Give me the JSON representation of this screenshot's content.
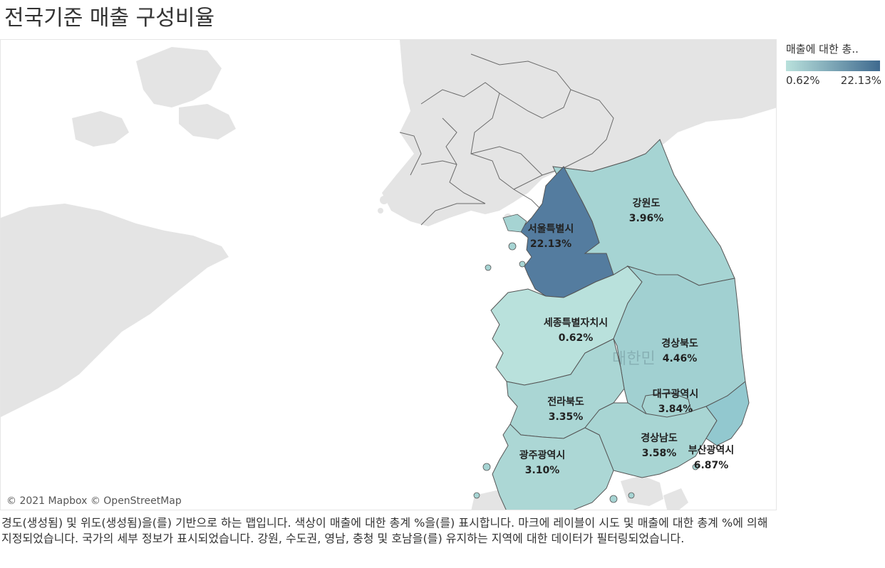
{
  "title": "전국기준 매출 구성비율",
  "map": {
    "country_label": "대한민",
    "attribution": "© 2021 Mapbox © OpenStreetMap",
    "base_colors": {
      "land": "#e4e4e4",
      "water": "#ffffff",
      "border": "#6a6a6a"
    },
    "regions": [
      {
        "name": "서울특별시",
        "value": "22.13%",
        "share": 22.13,
        "color": "#547c9f"
      },
      {
        "name": "강원도",
        "value": "3.96%",
        "share": 3.96,
        "color": "#a6d4d3"
      },
      {
        "name": "세종특별자치시",
        "value": "0.62%",
        "share": 0.62,
        "color": "#b9e1dc"
      },
      {
        "name": "경상북도",
        "value": "4.46%",
        "share": 4.46,
        "color": "#a1d0d1"
      },
      {
        "name": "대구광역시",
        "value": "3.84%",
        "share": 3.84,
        "color": "#a7d5d3"
      },
      {
        "name": "전라북도",
        "value": "3.35%",
        "share": 3.35,
        "color": "#aad6d4"
      },
      {
        "name": "경상남도",
        "value": "3.58%",
        "share": 3.58,
        "color": "#a8d5d3"
      },
      {
        "name": "부산광역시",
        "value": "6.87%",
        "share": 6.87,
        "color": "#92c8cf"
      },
      {
        "name": "광주광역시",
        "value": "3.10%",
        "share": 3.1,
        "color": "#acd7d5"
      }
    ]
  },
  "legend": {
    "title": "매출에 대한 총..",
    "min_label": "0.62%",
    "max_label": "22.13%",
    "color_low": "#b9e1dc",
    "color_high": "#3f6a8f"
  },
  "caption": "경도(생성됨) 및 위도(생성됨)을(를) 기반으로 하는 맵입니다.  색상이 매출에 대한 총계 %을(를) 표시합니다.  마크에 레이블이 시도 및 매출에 대한 총계 %에 의해 지정되었습니다.  국가의 세부 정보가 표시되었습니다. 강원, 수도권, 영남, 충청 및 호남을(를) 유지하는 지역에 대한 데이터가 필터링되었습니다."
}
